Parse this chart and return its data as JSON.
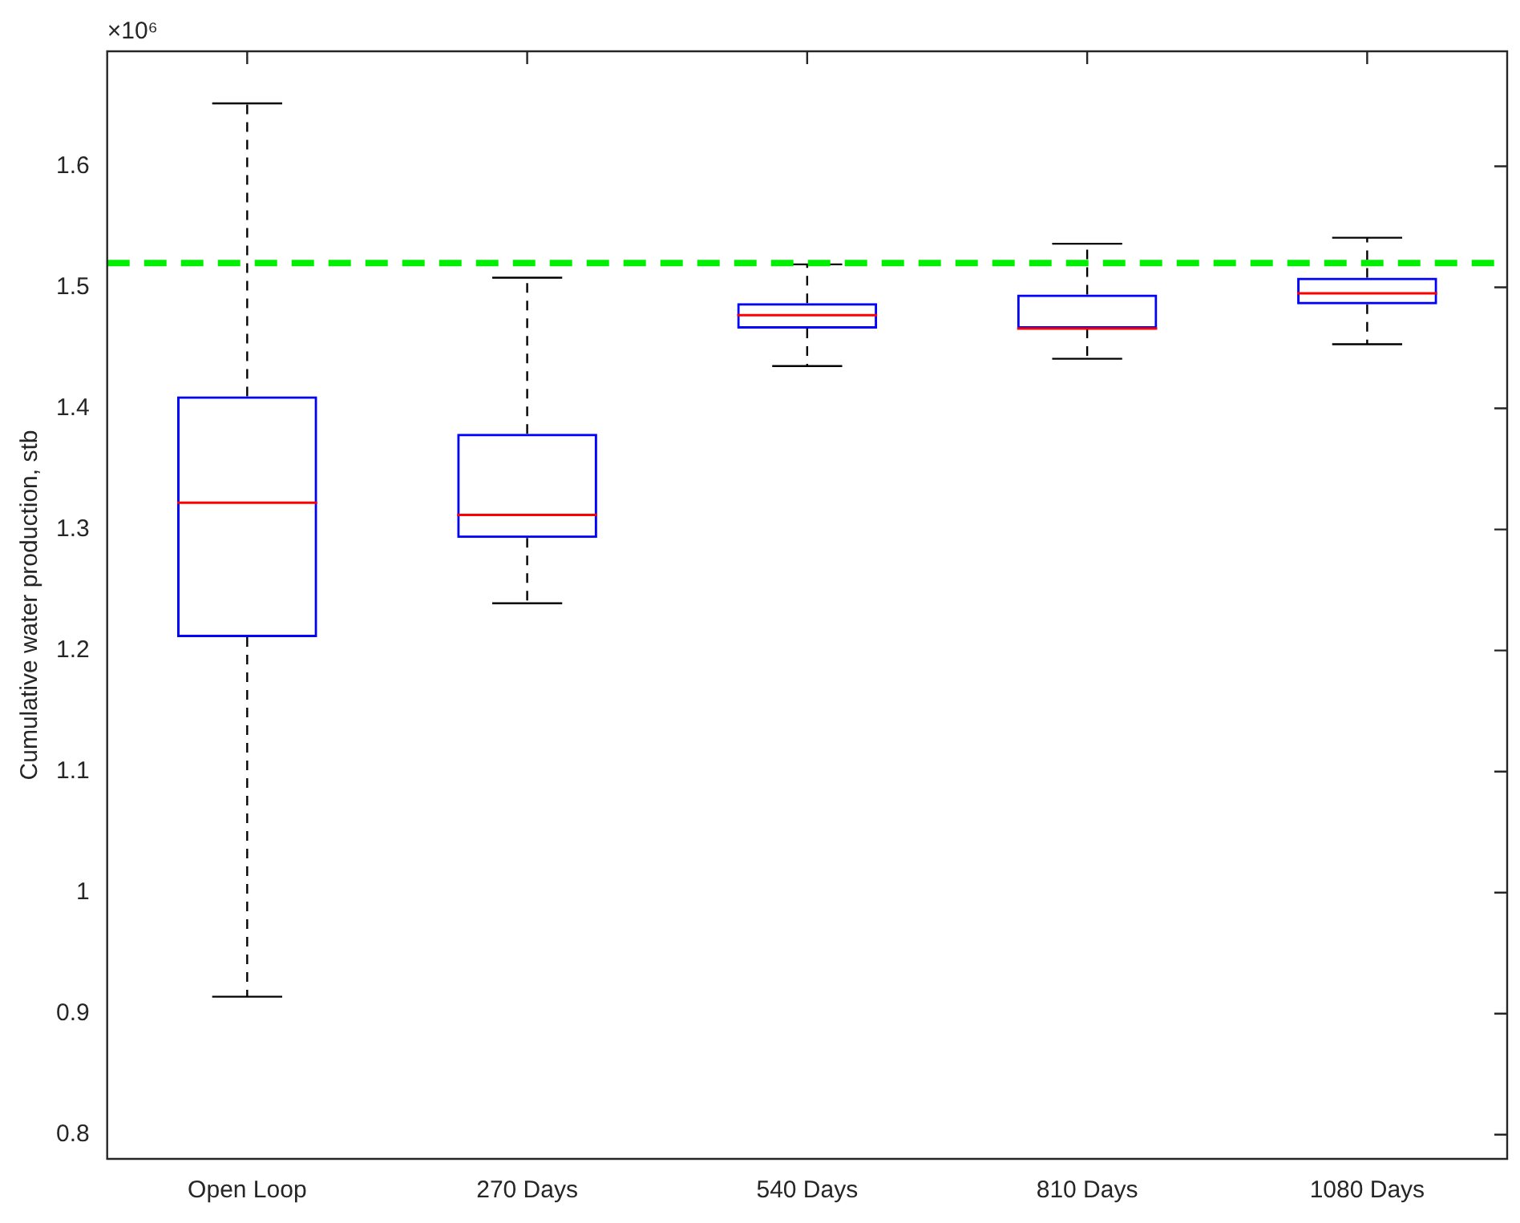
{
  "chart_data": {
    "type": "box",
    "ylabel": "Cumulative water production, stb",
    "categories": [
      "Open Loop",
      "270 Days",
      "540 Days",
      "810 Days",
      "1080 Days"
    ],
    "series": [
      {
        "color": "#0000ff",
        "boxes": [
          {
            "low": 0.914,
            "q1": 1.211,
            "median": 1.322,
            "q3": 1.41,
            "high": 1.652
          },
          {
            "low": 1.239,
            "q1": 1.293,
            "median": 1.312,
            "q3": 1.379,
            "high": 1.508
          },
          {
            "low": 1.435,
            "q1": 1.466,
            "median": 1.477,
            "q3": 1.487,
            "high": 1.519
          },
          {
            "low": 1.441,
            "q1": 1.466,
            "median": 1.466,
            "q3": 1.494,
            "high": 1.536
          },
          {
            "low": 1.453,
            "q1": 1.486,
            "median": 1.495,
            "q3": 1.508,
            "high": 1.541
          }
        ]
      }
    ],
    "ylim": [
      0.78,
      1.695
    ],
    "yticks": [
      0.8,
      0.9,
      1,
      1.1,
      1.2,
      1.3,
      1.4,
      1.5,
      1.6
    ],
    "ref_lines": [
      {
        "axis": "y",
        "value": 1.52,
        "color": "#00ee00",
        "line_style": "dashed"
      }
    ],
    "annotations": [
      "×10⁶"
    ],
    "grid": false,
    "legend": false
  }
}
